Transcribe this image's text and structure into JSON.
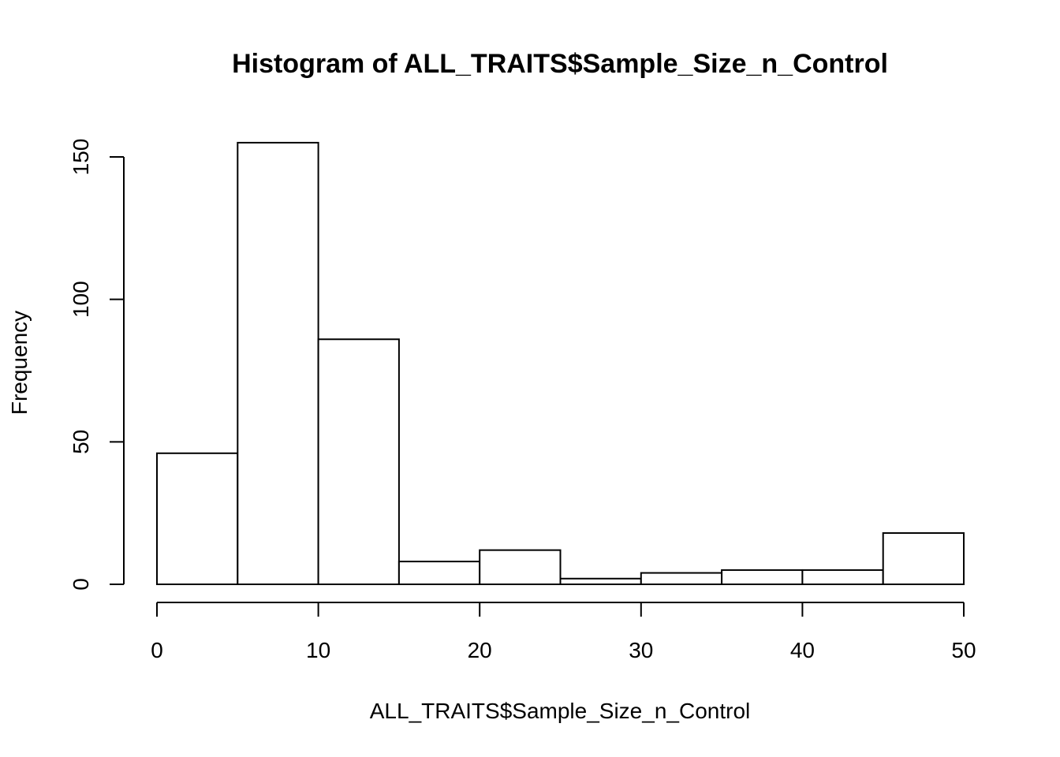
{
  "chart_data": {
    "type": "bar",
    "title": "Histogram of ALL_TRAITS$Sample_Size_n_Control",
    "xlabel": "ALL_TRAITS$Sample_Size_n_Control",
    "ylabel": "Frequency",
    "bins": [
      [
        0,
        5
      ],
      [
        5,
        10
      ],
      [
        10,
        15
      ],
      [
        15,
        20
      ],
      [
        20,
        25
      ],
      [
        25,
        30
      ],
      [
        30,
        35
      ],
      [
        35,
        40
      ],
      [
        40,
        45
      ],
      [
        45,
        50
      ]
    ],
    "values": [
      46,
      155,
      86,
      8,
      12,
      2,
      4,
      5,
      5,
      18
    ],
    "xlim": [
      0,
      50
    ],
    "ylim": [
      0,
      150
    ],
    "xticks": [
      0,
      10,
      20,
      30,
      40,
      50
    ],
    "yticks": [
      0,
      50,
      100,
      150
    ],
    "grid": false,
    "colors": {
      "fill": "#ffffff",
      "stroke": "#000000"
    }
  }
}
